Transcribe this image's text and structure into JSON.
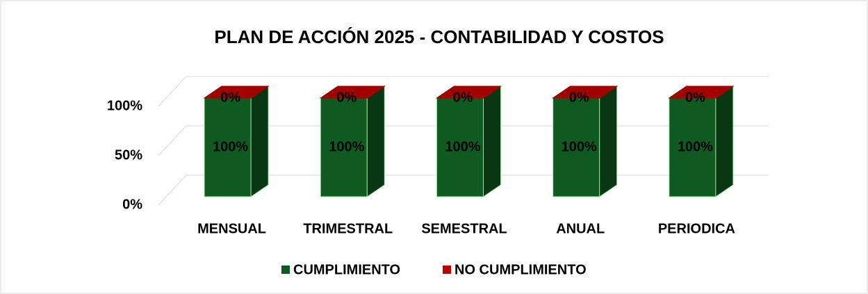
{
  "chart_data": {
    "type": "bar3d_stacked",
    "title": "PLAN DE ACCIÓN 2025 - CONTABILIDAD Y COSTOS",
    "categories": [
      "MENSUAL",
      "TRIMESTRAL",
      "SEMESTRAL",
      "ANUAL",
      "PERIODICA"
    ],
    "series": [
      {
        "name": "CUMPLIMIENTO",
        "color": "#0f5a20",
        "values": [
          100,
          100,
          100,
          100,
          100
        ],
        "value_labels": [
          "100%",
          "100%",
          "100%",
          "100%",
          "100%"
        ]
      },
      {
        "name": "NO CUMPLIMIENTO",
        "color": "#c00000",
        "values": [
          0,
          0,
          0,
          0,
          0
        ],
        "value_labels": [
          "0%",
          "0%",
          "0%",
          "0%",
          "0%"
        ]
      }
    ],
    "ylim": [
      0,
      100
    ],
    "yticks": [
      {
        "value": 0,
        "label": "0%"
      },
      {
        "value": 50,
        "label": "50%"
      },
      {
        "value": 100,
        "label": "100%"
      }
    ],
    "grid": true,
    "legend": "bottom"
  }
}
